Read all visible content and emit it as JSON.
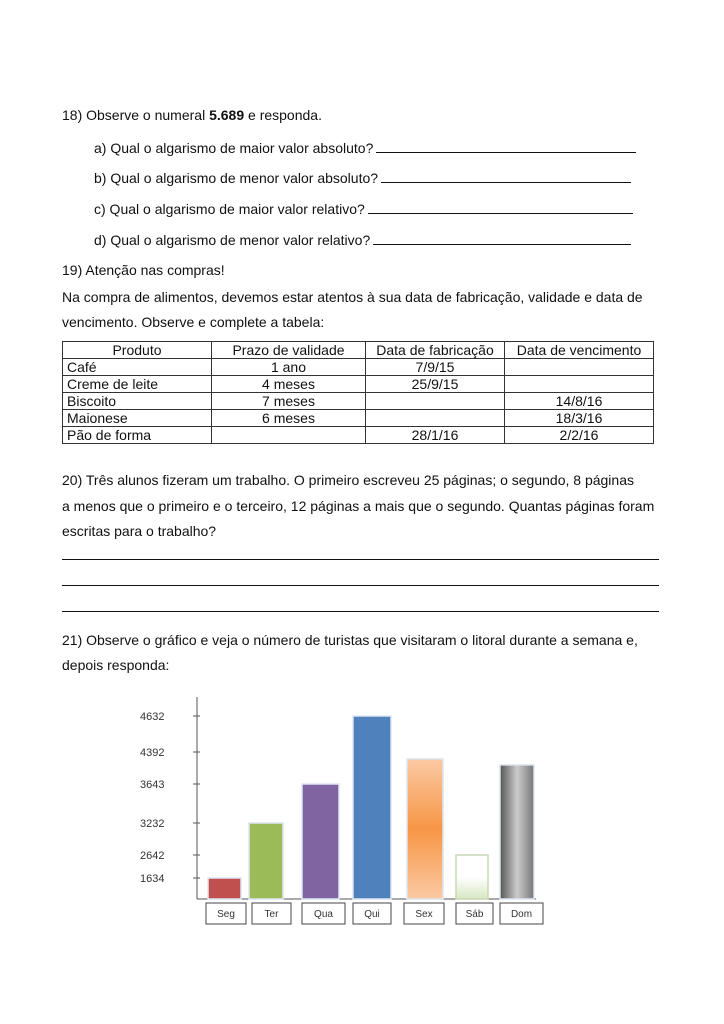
{
  "q18": {
    "prefix": "18) Observe o numeral ",
    "number": "5.689",
    "suffix": " e responda.",
    "items": [
      "a) Qual o algarismo de maior valor absoluto?",
      "b) Qual o algarismo de menor valor absoluto?",
      "c) Qual o algarismo de maior valor relativo?",
      "d) Qual o algarismo de menor valor relativo?"
    ]
  },
  "q19": {
    "title": "19) Atenção nas compras!",
    "text1": "Na compra de alimentos, devemos estar atentos à sua data de fabricação, validade e data de",
    "text2": "vencimento. Observe e complete a tabela:",
    "table": {
      "headers": [
        "Produto",
        "Prazo de validade",
        "Data de fabricação",
        "Data de vencimento"
      ],
      "rows": [
        [
          "Café",
          "1 ano",
          "7/9/15",
          ""
        ],
        [
          "Creme de leite",
          "4 meses",
          "25/9/15",
          ""
        ],
        [
          "Biscoito",
          "7 meses",
          "",
          "14/8/16"
        ],
        [
          "Maionese",
          "6 meses",
          "",
          "18/3/16"
        ],
        [
          "Pão de forma",
          "",
          "28/1/16",
          "2/2/16"
        ]
      ]
    }
  },
  "q20": {
    "line1": "20) Três alunos fizeram um trabalho. O primeiro escreveu 25 páginas; o segundo, 8 páginas",
    "line2": "a menos que o primeiro e o terceiro, 12 páginas a mais que o segundo. Quantas páginas foram",
    "line3": "escritas para o trabalho?"
  },
  "q21": {
    "line1": "21) Observe o gráfico e veja o número de turistas que visitaram o litoral durante a semana e,",
    "line2": "depois responda:"
  },
  "chart_data": {
    "type": "bar",
    "categories": [
      "Seg",
      "Ter",
      "Qua",
      "Qui",
      "Sex",
      "Sáb",
      "Dom"
    ],
    "values": [
      1634,
      3232,
      3643,
      4632,
      4230,
      2642,
      4090
    ],
    "yticks": [
      "4632",
      "4392",
      "3643",
      "3232",
      "2642",
      "1634"
    ],
    "colors": [
      "#c0504d",
      "#9bbb59",
      "#8064a2",
      "#4f81bd",
      "#f79646",
      "#e4efd6",
      "#9a9a9a"
    ],
    "grid": false,
    "title": "",
    "xlabel": "",
    "ylabel": ""
  }
}
